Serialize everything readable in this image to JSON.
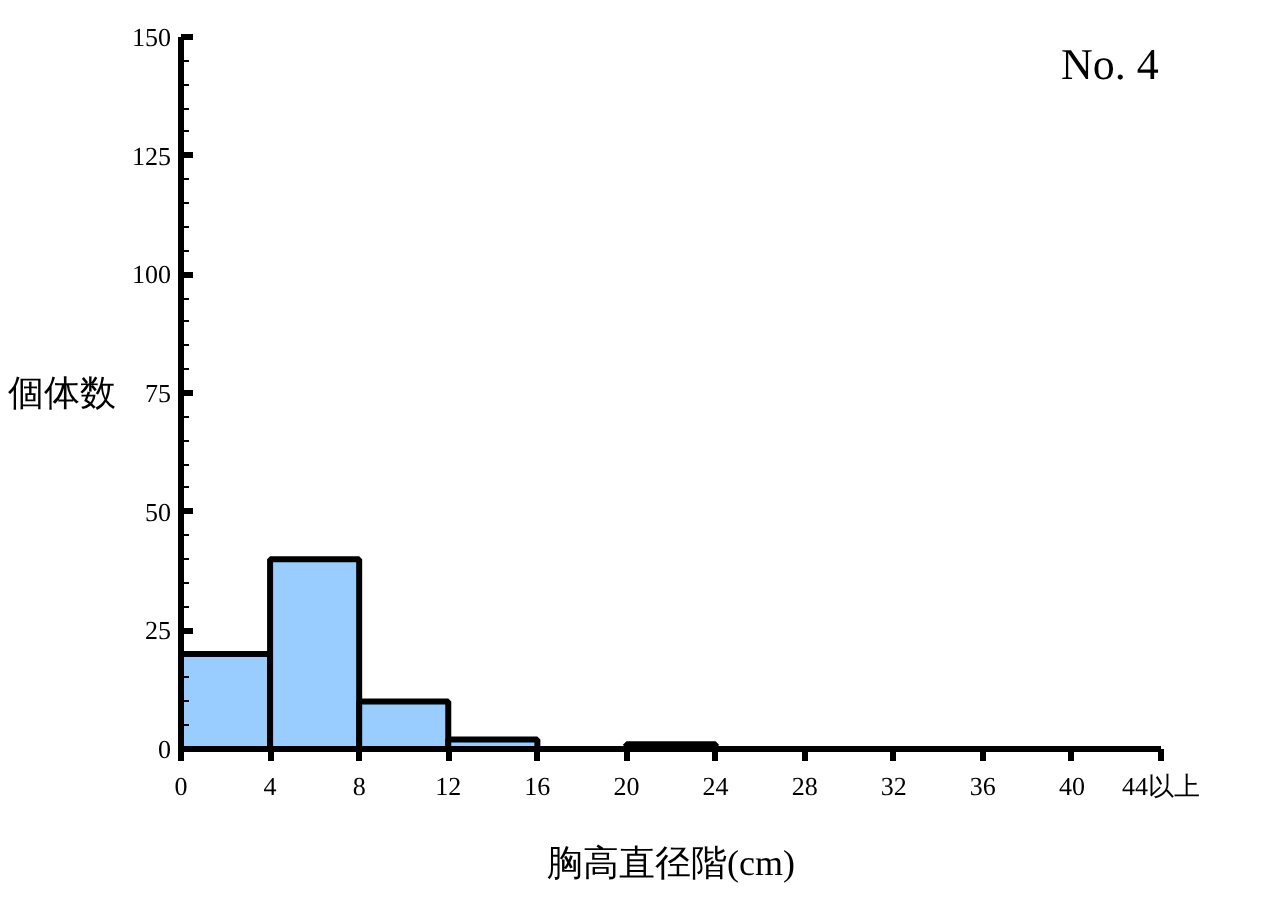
{
  "chart_data": {
    "type": "histogram",
    "xlabel": "胸高直径階(cm)",
    "ylabel": "個体数",
    "annotations": [
      "No. 4"
    ],
    "bins": [
      0,
      4,
      8,
      12,
      16,
      20,
      24,
      28,
      32,
      36,
      40,
      44
    ],
    "values": [
      20,
      40,
      10,
      2,
      0,
      1,
      0,
      0,
      0,
      0,
      0
    ],
    "color": "#99ccff",
    "xlim": [
      0,
      44
    ],
    "ylim": [
      0,
      150
    ],
    "xticks": [
      0,
      4,
      8,
      12,
      16,
      20,
      24,
      28,
      32,
      36,
      40,
      {
        "value": 44,
        "label": "44以上"
      }
    ],
    "yticks": [
      0,
      25,
      50,
      75,
      100,
      125,
      150
    ],
    "grid": false
  }
}
